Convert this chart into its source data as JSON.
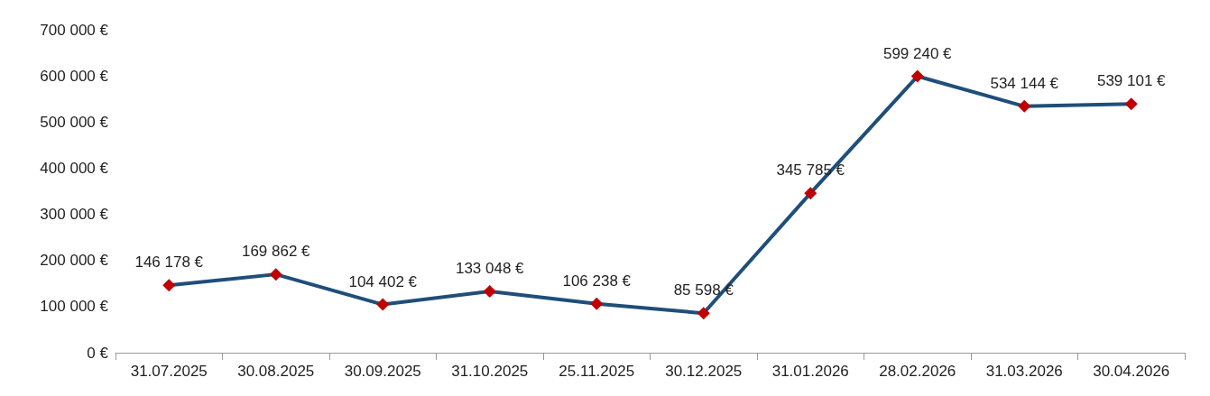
{
  "chart_data": {
    "type": "line",
    "categories": [
      "31.07.2025",
      "30.08.2025",
      "30.09.2025",
      "31.10.2025",
      "25.11.2025",
      "30.12.2025",
      "31.01.2026",
      "28.02.2026",
      "31.03.2026",
      "30.04.2026"
    ],
    "series": [
      {
        "color": "#1f4e79",
        "values": [
          146178,
          169862,
          104402,
          133048,
          106238,
          85598,
          345785,
          599240,
          534144,
          539101
        ],
        "colors": [
          "#c00000",
          "#c00000",
          "#c00000",
          "#c00000",
          "#c00000",
          "#c00000",
          "#c00000",
          "#c00000",
          "#c00000",
          "#c00000"
        ],
        "value_labels": [
          "146 178 €",
          "169 862 €",
          "104 402 €",
          "133 048 €",
          "106 238 €",
          "85 598 €",
          "345 785 €",
          "599 240 €",
          "534 144 €",
          "539 101 €"
        ]
      }
    ],
    "marker": "diamond",
    "ylim": [
      0,
      700000
    ],
    "yticks": [
      {
        "value": 0,
        "label": "0 €"
      },
      {
        "value": 100000,
        "label": "100 000 €"
      },
      {
        "value": 200000,
        "label": "200 000 €"
      },
      {
        "value": 300000,
        "label": "300 000 €"
      },
      {
        "value": 400000,
        "label": "400 000 €"
      },
      {
        "value": 500000,
        "label": "500 000 €"
      },
      {
        "value": 600000,
        "label": "600 000 €"
      },
      {
        "value": 700000,
        "label": "700 000 €"
      }
    ],
    "grid": false
  }
}
